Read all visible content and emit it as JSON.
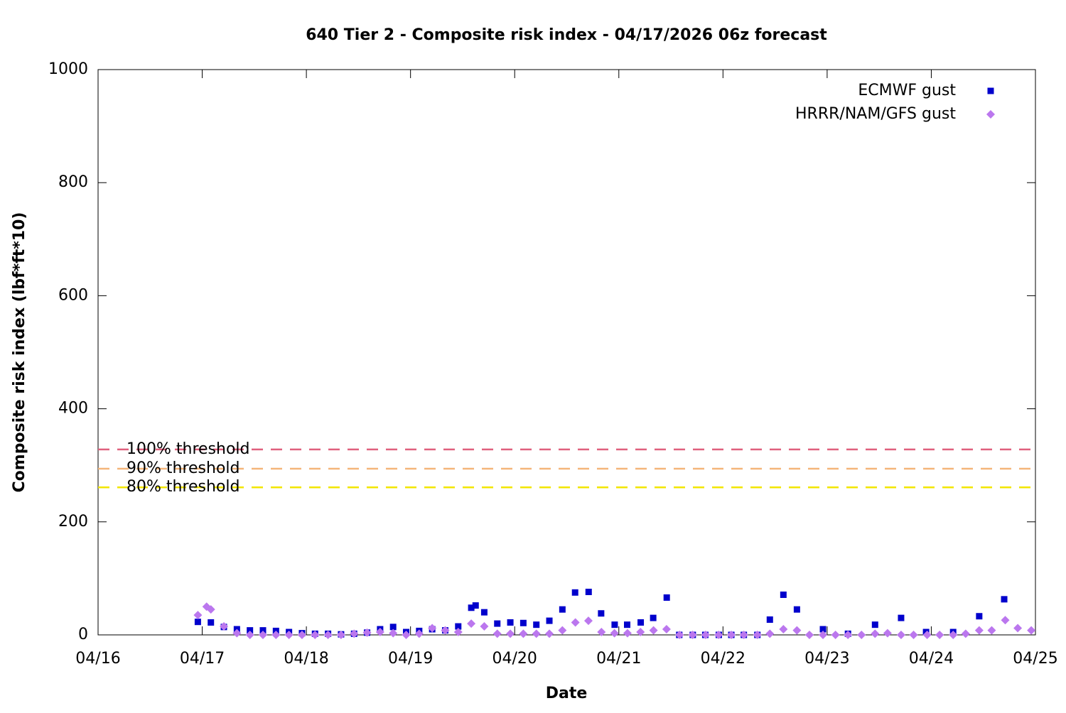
{
  "chart_data": {
    "type": "scatter",
    "title": "640 Tier 2 - Composite risk index - 04/17/2026 06z forecast",
    "x_label": "Date",
    "y_label": "Composite risk index (lbf*ft*10)",
    "xlim": [
      0,
      9
    ],
    "xticks": [
      {
        "value": 0,
        "label": "04/16"
      },
      {
        "value": 1,
        "label": "04/17"
      },
      {
        "value": 2,
        "label": "04/18"
      },
      {
        "value": 3,
        "label": "04/19"
      },
      {
        "value": 4,
        "label": "04/20"
      },
      {
        "value": 5,
        "label": "04/21"
      },
      {
        "value": 6,
        "label": "04/22"
      },
      {
        "value": 7,
        "label": "04/23"
      },
      {
        "value": 8,
        "label": "04/24"
      },
      {
        "value": 9,
        "label": "04/25"
      }
    ],
    "ylim": [
      0,
      1000
    ],
    "yticks": [
      0,
      200,
      400,
      600,
      800,
      1000
    ],
    "legend": "top right",
    "thresholds": [
      {
        "label": "100% threshold",
        "value": 328,
        "color": "#e0607e"
      },
      {
        "label": "90% threshold",
        "value": 294,
        "color": "#f4b57a"
      },
      {
        "label": "80% threshold",
        "value": 261,
        "color": "#f2e600"
      }
    ],
    "series": [
      {
        "name": "ECMWF gust",
        "color": "#0000cc",
        "marker": "square",
        "x": [
          0.958,
          1.083,
          1.208,
          1.333,
          1.458,
          1.583,
          1.708,
          1.833,
          1.958,
          2.083,
          2.208,
          2.333,
          2.458,
          2.583,
          2.708,
          2.833,
          2.958,
          3.083,
          3.208,
          3.333,
          3.458,
          3.583,
          3.625,
          3.708,
          3.833,
          3.958,
          4.083,
          4.208,
          4.333,
          4.458,
          4.58,
          4.71,
          4.83,
          4.96,
          5.08,
          5.21,
          5.33,
          5.46,
          5.58,
          5.71,
          5.83,
          5.96,
          6.08,
          6.2,
          6.33,
          6.45,
          6.58,
          6.71,
          6.96,
          7.2,
          7.46,
          7.71,
          7.95,
          8.21,
          8.46,
          8.7
        ],
        "values": [
          23,
          22,
          14,
          10,
          8,
          8,
          7,
          5,
          3,
          2,
          2,
          1,
          2,
          4,
          10,
          14,
          5,
          7,
          10,
          8,
          15,
          48,
          52,
          40,
          20,
          22,
          21,
          18,
          25,
          45,
          75,
          76,
          38,
          18,
          18,
          22,
          30,
          66,
          0,
          0,
          0,
          0,
          0,
          0,
          0,
          27,
          71,
          45,
          10,
          2,
          18,
          30,
          5,
          5,
          33,
          63
        ]
      },
      {
        "name": "HRRR/NAM/GFS gust",
        "color": "#bb77ee",
        "marker": "diamond",
        "x": [
          0.958,
          1.042,
          1.083,
          1.208,
          1.333,
          1.458,
          1.583,
          1.708,
          1.833,
          1.958,
          2.083,
          2.208,
          2.333,
          2.458,
          2.583,
          2.708,
          2.833,
          2.958,
          3.083,
          3.208,
          3.333,
          3.458,
          3.583,
          3.708,
          3.833,
          3.958,
          4.083,
          4.208,
          4.333,
          4.458,
          4.583,
          4.708,
          4.833,
          4.958,
          5.083,
          5.208,
          5.333,
          5.458,
          5.583,
          5.708,
          5.833,
          5.958,
          6.08,
          6.2,
          6.33,
          6.45,
          6.58,
          6.71,
          6.83,
          6.96,
          7.08,
          7.2,
          7.33,
          7.46,
          7.58,
          7.71,
          7.83,
          7.96,
          8.08,
          8.21,
          8.33,
          8.46,
          8.58,
          8.71,
          8.83,
          8.96
        ],
        "values": [
          35,
          50,
          45,
          15,
          3,
          0,
          0,
          0,
          0,
          0,
          0,
          0,
          0,
          2,
          4,
          5,
          3,
          0,
          2,
          12,
          8,
          5,
          20,
          15,
          2,
          2,
          2,
          2,
          2,
          8,
          22,
          25,
          5,
          3,
          3,
          5,
          8,
          10,
          0,
          0,
          0,
          0,
          0,
          0,
          0,
          2,
          10,
          8,
          0,
          0,
          0,
          0,
          0,
          2,
          3,
          0,
          0,
          0,
          0,
          0,
          2,
          8,
          8,
          26,
          12,
          8
        ]
      }
    ]
  }
}
